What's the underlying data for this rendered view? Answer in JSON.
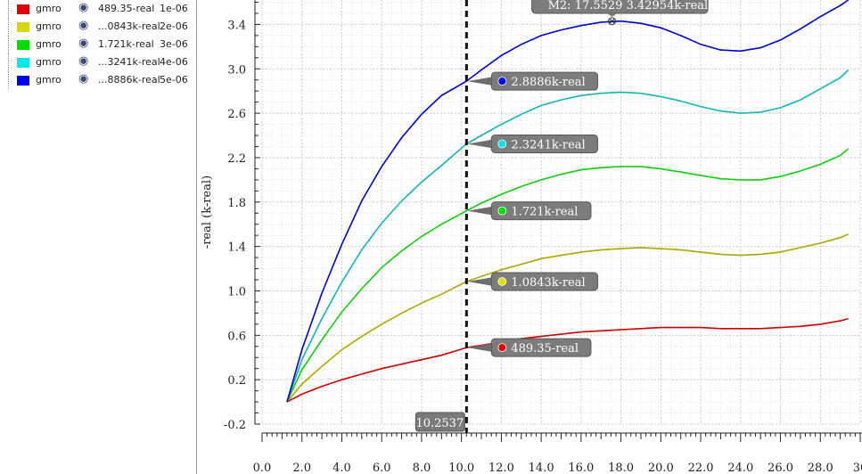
{
  "legend": {
    "items": [
      {
        "name": "gmro",
        "value": "489.35-real",
        "sweep": "1e-06",
        "color": "#dd0000",
        "icon": "eye-icon"
      },
      {
        "name": "gmro",
        "value": "...0843k-real",
        "sweep": "2e-06",
        "color": "#d8d800",
        "icon": "eye-icon"
      },
      {
        "name": "gmro",
        "value": "1.721k-real",
        "sweep": "3e-06",
        "color": "#00dd00",
        "icon": "eye-icon"
      },
      {
        "name": "gmro",
        "value": "...3241k-real",
        "sweep": "4e-06",
        "color": "#00e8e8",
        "icon": "eye-icon"
      },
      {
        "name": "gmro",
        "value": "...8886k-real",
        "sweep": "5e-06",
        "color": "#0000ee",
        "icon": "eye-icon"
      }
    ]
  },
  "chart_data": {
    "type": "line",
    "ylabel": "-real (k-real)",
    "xlim": [
      0,
      30
    ],
    "ylim": [
      -0.2,
      3.62
    ],
    "grid": true,
    "x_ticks": [
      "0.0",
      "2.0",
      "4.0",
      "6.0",
      "8.0",
      "10.0",
      "12.0",
      "14.0",
      "16.0",
      "18.0",
      "20.0",
      "22.0",
      "24.0",
      "26.0",
      "28.0",
      "30"
    ],
    "x_tick_values": [
      0,
      2,
      4,
      6,
      8,
      10,
      12,
      14,
      16,
      18,
      20,
      22,
      24,
      26,
      28,
      30
    ],
    "y_ticks": [
      "-0.2",
      "0.2",
      "0.6",
      "1.0",
      "1.4",
      "1.8",
      "2.2",
      "2.6",
      "3.0",
      "3.4"
    ],
    "y_tick_values": [
      -0.2,
      0.2,
      0.6,
      1.0,
      1.4,
      1.8,
      2.2,
      2.6,
      3.0,
      3.4
    ],
    "x": [
      1.25,
      2,
      3,
      4,
      5,
      6,
      7,
      8,
      9,
      10.25,
      11,
      12,
      13,
      14,
      15,
      16,
      17,
      18,
      19,
      20,
      21,
      22,
      23,
      24,
      25,
      26,
      27,
      28,
      29,
      29.4
    ],
    "series": [
      {
        "color": "#cc0000",
        "values": [
          0.0,
          0.07,
          0.14,
          0.2,
          0.25,
          0.3,
          0.34,
          0.38,
          0.42,
          0.489,
          0.51,
          0.54,
          0.57,
          0.59,
          0.61,
          0.63,
          0.64,
          0.65,
          0.66,
          0.67,
          0.67,
          0.67,
          0.66,
          0.66,
          0.66,
          0.67,
          0.68,
          0.7,
          0.73,
          0.75
        ]
      },
      {
        "color": "#a8a800",
        "values": [
          0.0,
          0.16,
          0.32,
          0.47,
          0.59,
          0.7,
          0.8,
          0.89,
          0.97,
          1.0843,
          1.13,
          1.19,
          1.24,
          1.29,
          1.32,
          1.35,
          1.37,
          1.38,
          1.39,
          1.38,
          1.37,
          1.35,
          1.33,
          1.32,
          1.33,
          1.35,
          1.39,
          1.43,
          1.48,
          1.51
        ]
      },
      {
        "color": "#11cc11",
        "values": [
          0.0,
          0.29,
          0.56,
          0.81,
          1.02,
          1.21,
          1.36,
          1.49,
          1.6,
          1.721,
          1.79,
          1.87,
          1.94,
          2.0,
          2.05,
          2.09,
          2.11,
          2.12,
          2.12,
          2.1,
          2.07,
          2.04,
          2.01,
          2.0,
          2.0,
          2.03,
          2.08,
          2.14,
          2.22,
          2.28
        ]
      },
      {
        "color": "#17b3b3",
        "values": [
          0.0,
          0.38,
          0.75,
          1.08,
          1.37,
          1.61,
          1.81,
          1.98,
          2.13,
          2.3241,
          2.4,
          2.5,
          2.59,
          2.67,
          2.72,
          2.76,
          2.78,
          2.79,
          2.78,
          2.75,
          2.71,
          2.66,
          2.62,
          2.6,
          2.61,
          2.65,
          2.72,
          2.82,
          2.92,
          2.99
        ]
      },
      {
        "color": "#0000cc",
        "values": [
          0.0,
          0.47,
          0.98,
          1.42,
          1.81,
          2.12,
          2.38,
          2.59,
          2.76,
          2.8886,
          2.99,
          3.12,
          3.22,
          3.3,
          3.35,
          3.39,
          3.42,
          3.43,
          3.41,
          3.37,
          3.3,
          3.22,
          3.17,
          3.16,
          3.19,
          3.26,
          3.36,
          3.47,
          3.57,
          3.62
        ]
      }
    ],
    "cursor": {
      "x": 10.2537,
      "label": "10.2537"
    },
    "markers": [
      {
        "label": "2.8886k-real",
        "value": 2.8886,
        "color": "#0000ee"
      },
      {
        "label": "2.3241k-real",
        "value": 2.3241,
        "color": "#00e0e0"
      },
      {
        "label": "1.721k-real",
        "value": 1.721,
        "color": "#00dd00"
      },
      {
        "label": "1.0843k-real",
        "value": 1.0843,
        "color": "#e0e000"
      },
      {
        "label": "489.35-real",
        "value": 0.48935,
        "color": "#dd0000"
      }
    ],
    "point_marker": {
      "label": "M2: 17.5529 3.42954k-real",
      "x": 17.5529,
      "y": 3.42954
    }
  }
}
